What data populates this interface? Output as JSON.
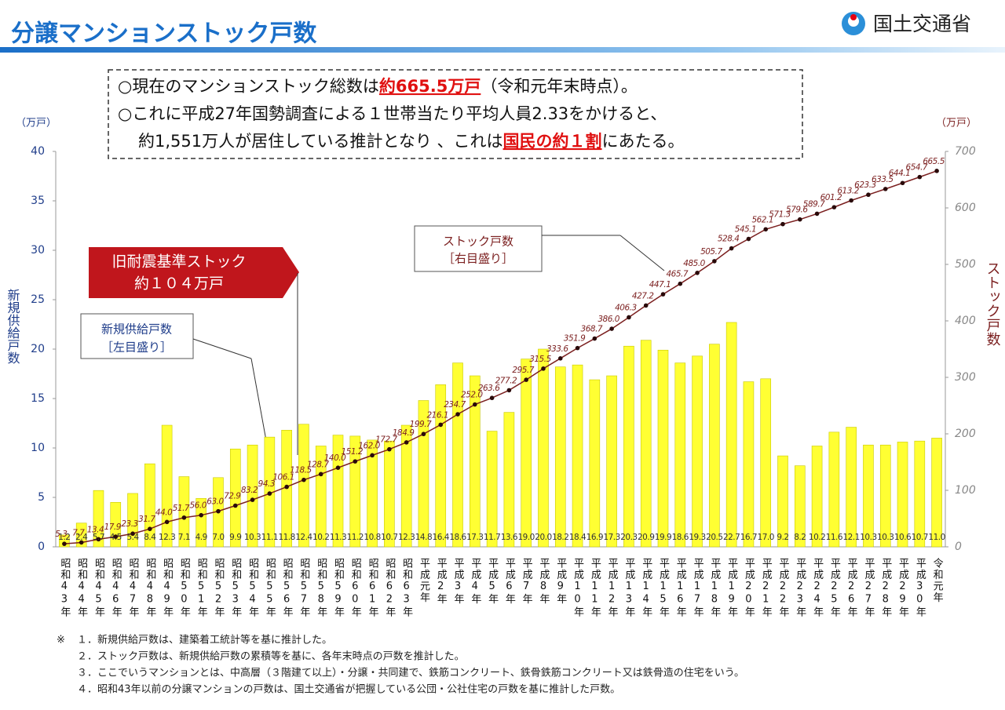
{
  "header": {
    "title": "分譲マンションストック戸数",
    "org": "国土交通省"
  },
  "info_box": {
    "lines": [
      [
        "○現在のマンションストック総数は",
        "約665.5万戸",
        "（令和元年末時点）。"
      ],
      [
        "○これに平成27年国勢調査による１世帯当たり平均人員2.33をかけると、"
      ],
      [
        "約1,551万人が居住している推計となり 、これは",
        "国民の約１割",
        "にあたる。"
      ]
    ]
  },
  "chart_data": {
    "type": "bar",
    "ylabel": "新規供給戸数",
    "y2label": "ストック戸数",
    "yunit": "（万戸）",
    "y2unit": "（万戸）",
    "callout": [
      "旧耐震基準ストック",
      "約１０４万戸"
    ],
    "categories": [
      "昭和43年",
      "昭和44年",
      "昭和45年",
      "昭和46年",
      "昭和47年",
      "昭和48年",
      "昭和49年",
      "昭和50年",
      "昭和51年",
      "昭和52年",
      "昭和53年",
      "昭和54年",
      "昭和55年",
      "昭和56年",
      "昭和57年",
      "昭和58年",
      "昭和59年",
      "昭和60年",
      "昭和61年",
      "昭和62年",
      "昭和63年",
      "平成元年",
      "平成2年",
      "平成3年",
      "平成4年",
      "平成5年",
      "平成6年",
      "平成7年",
      "平成8年",
      "平成9年",
      "平成10年",
      "平成11年",
      "平成12年",
      "平成13年",
      "平成14年",
      "平成15年",
      "平成16年",
      "平成17年",
      "平成18年",
      "平成19年",
      "平成20年",
      "平成21年",
      "平成22年",
      "平成23年",
      "平成24年",
      "平成25年",
      "平成26年",
      "平成27年",
      "平成28年",
      "平成29年",
      "平成30年",
      "令和元年"
    ],
    "series": [
      {
        "name": "新規供給戸数",
        "scale_note": "［左目盛り］",
        "type": "bar",
        "color": "#ffff33",
        "values": [
          1.2,
          2.4,
          5.7,
          4.5,
          5.4,
          8.4,
          12.3,
          7.1,
          4.9,
          7.0,
          9.9,
          10.3,
          11.1,
          11.8,
          12.4,
          10.2,
          11.3,
          11.2,
          10.8,
          10.7,
          12.3,
          14.8,
          16.4,
          18.6,
          17.3,
          11.7,
          13.6,
          19.0,
          20.0,
          18.2,
          18.4,
          16.9,
          17.3,
          20.3,
          20.9,
          19.9,
          18.6,
          19.3,
          20.5,
          22.7,
          16.7,
          17.0,
          9.2,
          8.2,
          10.2,
          11.6,
          12.1,
          10.3,
          10.3,
          10.6,
          10.7,
          11.0
        ],
        "value_labels": [
          "1.2",
          "2.4",
          "5.7",
          "4.5",
          "5.4",
          "8.4",
          "12.3",
          "7.1",
          "4.9",
          "7.0",
          "9.9",
          "10.3",
          "11.1",
          "11.8",
          "12.4",
          "10.2",
          "11.3",
          "11.2",
          "10.8",
          "10.7",
          "12.3",
          "14.8",
          "16.4",
          "18.6",
          "17.3",
          "11.7",
          "13.6",
          "19.0",
          "20.0",
          "18.2",
          "18.4",
          "16.9",
          "17.3",
          "20.3",
          "20.9",
          "19.9",
          "18.6",
          "19.3",
          "20.5",
          "22.7",
          "16.7",
          "17.0",
          "9.2",
          "8.2",
          "10.2",
          "11.6",
          "12.1",
          "10.3",
          "10.3",
          "10.6",
          "10.7",
          "11.0"
        ]
      },
      {
        "name": "ストック戸数",
        "scale_note": "［右目盛り］",
        "type": "line",
        "axis": "y2",
        "color": "#7b1f1f",
        "values": [
          5.3,
          7.7,
          13.4,
          17.9,
          23.3,
          31.7,
          44.0,
          51.7,
          56.0,
          63.0,
          72.9,
          83.2,
          94.3,
          106.1,
          118.5,
          128.7,
          140.0,
          151.2,
          162.0,
          172.7,
          184.9,
          199.7,
          216.1,
          234.7,
          252.0,
          263.6,
          277.2,
          295.7,
          315.5,
          333.6,
          351.9,
          368.7,
          386.0,
          406.3,
          427.2,
          447.1,
          465.7,
          485.0,
          505.7,
          528.4,
          545.1,
          562.1,
          571.3,
          579.6,
          589.7,
          601.2,
          613.2,
          623.3,
          633.5,
          644.1,
          654.7,
          665.5
        ],
        "value_labels": [
          "5.3",
          "7.7",
          "13.4",
          "17.9",
          "23.3",
          "31.7",
          "44.0",
          "51.7",
          "56.0",
          "63.0",
          "72.9",
          "83.2",
          "94.3",
          "106.1",
          "118.5",
          "128.7",
          "140.0",
          "151.2",
          "162.0",
          "172.7",
          "184.9",
          "199.7",
          "216.1",
          "234.7",
          "252.0",
          "263.6",
          "277.2",
          "295.7",
          "315.5",
          "333.6",
          "351.9",
          "368.7",
          "386.0",
          "406.3",
          "427.2",
          "447.1",
          "465.7",
          "485.0",
          "505.7",
          "528.4",
          "545.1",
          "562.1",
          "571.3",
          "579.6",
          "589.7",
          "601.2",
          "613.2",
          "623.3",
          "633.5",
          "644.1",
          "654.7",
          "665.5"
        ]
      }
    ],
    "ylim": [
      0,
      40
    ],
    "yticks": [
      0,
      5,
      10,
      15,
      20,
      25,
      30,
      35,
      40
    ],
    "y2lim": [
      0,
      700
    ],
    "y2ticks": [
      0,
      100,
      200,
      300,
      400,
      500,
      600,
      700
    ]
  },
  "notes": {
    "marker": "※",
    "items": [
      "１．新規供給戸数は、建築着工統計等を基に推計した。",
      "２．ストック戸数は、新規供給戸数の累積等を基に、各年末時点の戸数を推計した。",
      "３．ここでいうマンションとは、中高層（３階建て以上）・分譲・共同建で、鉄筋コンクリート、鉄骨鉄筋コンクリート又は鉄骨造の住宅をいう。",
      "４．昭和43年以前の分譲マンションの戸数は、国土交通省が把握している公団・公社住宅の戸数を基に推計した戸数。"
    ]
  }
}
